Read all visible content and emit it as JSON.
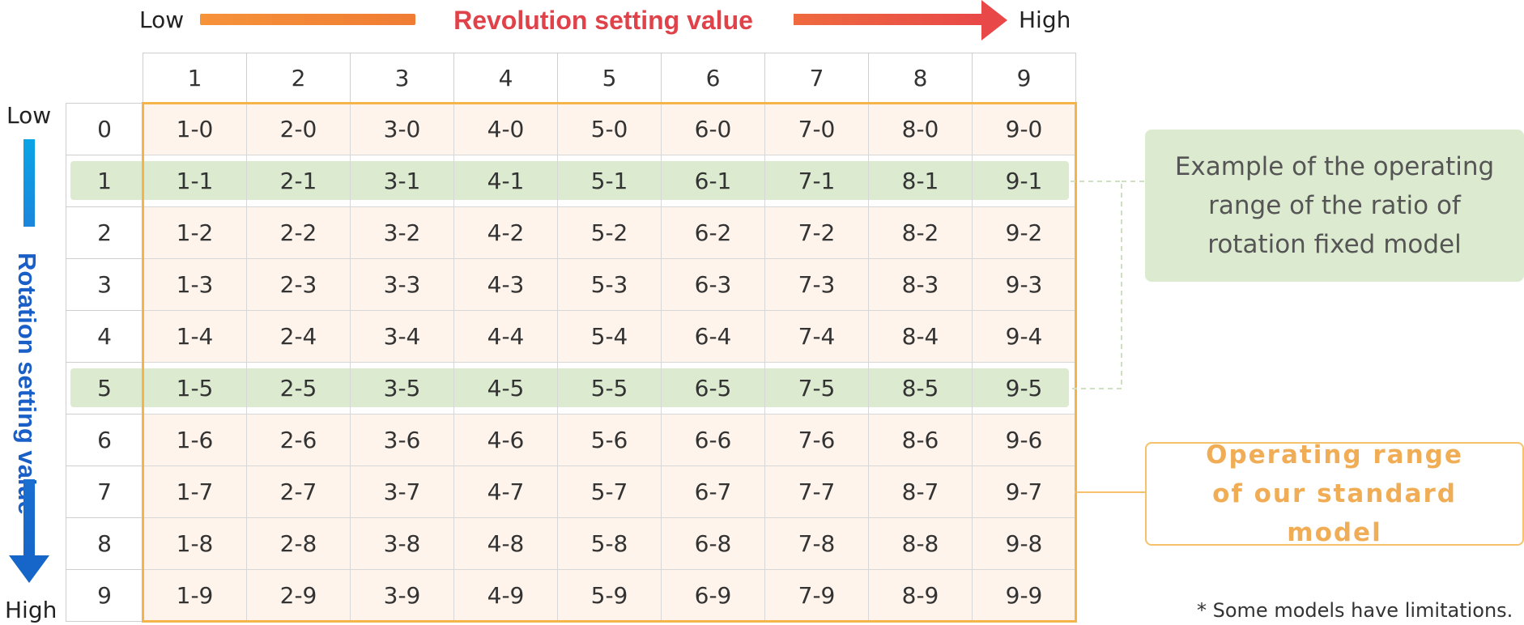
{
  "top_axis": {
    "low": "Low",
    "title": "Revolution setting value",
    "high": "High",
    "title_color": "#e0424a"
  },
  "side_axis": {
    "low": "Low",
    "title": "Rotation setting value",
    "high": "High",
    "title_color": "#1a5fc8"
  },
  "grid": {
    "columns": [
      "1",
      "2",
      "3",
      "4",
      "5",
      "6",
      "7",
      "8",
      "9"
    ],
    "rows": [
      "0",
      "1",
      "2",
      "3",
      "4",
      "5",
      "6",
      "7",
      "8",
      "9"
    ],
    "cells": [
      [
        "1-0",
        "2-0",
        "3-0",
        "4-0",
        "5-0",
        "6-0",
        "7-0",
        "8-0",
        "9-0"
      ],
      [
        "1-1",
        "2-1",
        "3-1",
        "4-1",
        "5-1",
        "6-1",
        "7-1",
        "8-1",
        "9-1"
      ],
      [
        "1-2",
        "2-2",
        "3-2",
        "4-2",
        "5-2",
        "6-2",
        "7-2",
        "8-2",
        "9-2"
      ],
      [
        "1-3",
        "2-3",
        "3-3",
        "4-3",
        "5-3",
        "6-3",
        "7-3",
        "8-3",
        "9-3"
      ],
      [
        "1-4",
        "2-4",
        "3-4",
        "4-4",
        "5-4",
        "6-4",
        "7-4",
        "8-4",
        "9-4"
      ],
      [
        "1-5",
        "2-5",
        "3-5",
        "4-5",
        "5-5",
        "6-5",
        "7-5",
        "8-5",
        "9-5"
      ],
      [
        "1-6",
        "2-6",
        "3-6",
        "4-6",
        "5-6",
        "6-6",
        "7-6",
        "8-6",
        "9-6"
      ],
      [
        "1-7",
        "2-7",
        "3-7",
        "4-7",
        "5-7",
        "6-7",
        "7-7",
        "8-7",
        "9-7"
      ],
      [
        "1-8",
        "2-8",
        "3-8",
        "4-8",
        "5-8",
        "6-8",
        "7-8",
        "8-8",
        "9-8"
      ],
      [
        "1-9",
        "2-9",
        "3-9",
        "4-9",
        "5-9",
        "6-9",
        "7-9",
        "8-9",
        "9-9"
      ]
    ],
    "highlighted_rows": [
      "1",
      "5"
    ]
  },
  "legend": {
    "fixed_ratio_text": "Example of the operating range of the ratio of rotation fixed model",
    "standard_text": "Operating range of our standard model"
  },
  "footnote": "* Some models have limitations.",
  "colors": {
    "cell_bg": "#fff4ec",
    "green_highlight": "#dcebd0",
    "orange_frame": "#f5b447",
    "legend_orange_text": "#f0ad55"
  }
}
